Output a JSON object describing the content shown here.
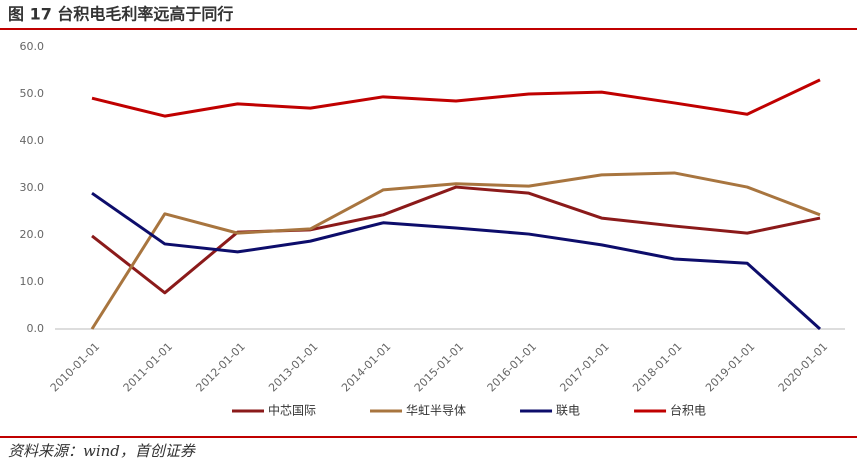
{
  "chart_data": {
    "type": "line",
    "title": "图 17 台积电毛利率远高于同行",
    "source": "资料来源：wind，首创证券",
    "categories": [
      "2010-01-01",
      "2011-01-01",
      "2012-01-01",
      "2013-01-01",
      "2014-01-01",
      "2015-01-01",
      "2016-01-01",
      "2017-01-01",
      "2018-01-01",
      "2019-01-01",
      "2020-01-01"
    ],
    "series": [
      {
        "name": "中芯国际",
        "color": "#8b1a1a",
        "values": [
          19.8,
          7.7,
          20.6,
          21.1,
          24.3,
          30.2,
          28.9,
          23.6,
          21.9,
          20.4,
          23.6
        ]
      },
      {
        "name": "华虹半导体",
        "color": "#a8753f",
        "values": [
          0,
          24.5,
          20.4,
          21.3,
          29.6,
          30.9,
          30.4,
          32.8,
          33.2,
          30.2,
          24.3
        ]
      },
      {
        "name": "联电",
        "color": "#0d0d6b",
        "values": [
          28.9,
          18.1,
          16.4,
          18.7,
          22.6,
          21.5,
          20.2,
          17.9,
          14.9,
          14.0,
          0
        ]
      },
      {
        "name": "台积电",
        "color": "#c00000",
        "values": [
          49.1,
          45.3,
          47.9,
          47.0,
          49.4,
          48.5,
          50.0,
          50.4,
          48.1,
          45.7,
          53.0
        ]
      }
    ],
    "ylim": [
      0,
      60
    ],
    "yticks": [
      {
        "value": 0,
        "label": "0.0"
      },
      {
        "value": 10,
        "label": "10.0"
      },
      {
        "value": 20,
        "label": "20.0"
      },
      {
        "value": 30,
        "label": "30.0"
      },
      {
        "value": 40,
        "label": "40.0"
      },
      {
        "value": 50,
        "label": "50.0"
      },
      {
        "value": 60,
        "label": "60.0"
      }
    ],
    "grid": false
  }
}
